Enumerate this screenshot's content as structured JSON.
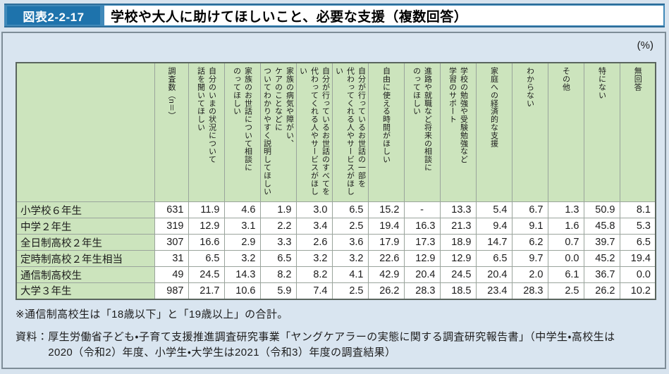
{
  "figure": {
    "label": "図表2-2-17",
    "title": "学校や大人に助けてほしいこと、必要な支援（複数回答）"
  },
  "unit_label": "(%)",
  "table": {
    "columns": [
      "調査数（n＝）",
      "自分のいまの状況について\n話を聞いてほしい",
      "家族のお世話について相談に\nのってほしい",
      "家族の病気や障がい、\nケアのことなどに\nついてわかりやすく説明してほしい",
      "自分が行っているお世話のすべてを\n代わってくれる人やサービスがほしい",
      "自分が行っているお世話の一部を\n代わってくれる人やサービスがほしい",
      "自由に使える時間がほしい",
      "進路や就職など将来の相談に\nのってほしい",
      "学校の勉強や受験勉強など\n学習のサポート",
      "家庭への経済的な支援",
      "わからない",
      "その他",
      "特にない",
      "無回答"
    ],
    "rows": [
      {
        "label": "小学校６年生",
        "values": [
          "631",
          "11.9",
          "4.6",
          "1.9",
          "3.0",
          "6.5",
          "15.2",
          "-",
          "13.3",
          "5.4",
          "6.7",
          "1.3",
          "50.9",
          "8.1"
        ]
      },
      {
        "label": "中学２年生",
        "values": [
          "319",
          "12.9",
          "3.1",
          "2.2",
          "3.4",
          "2.5",
          "19.4",
          "16.3",
          "21.3",
          "9.4",
          "9.1",
          "1.6",
          "45.8",
          "5.3"
        ]
      },
      {
        "label": "全日制高校２年生",
        "values": [
          "307",
          "16.6",
          "2.9",
          "3.3",
          "2.6",
          "3.6",
          "17.9",
          "17.3",
          "18.9",
          "14.7",
          "6.2",
          "0.7",
          "39.7",
          "6.5"
        ]
      },
      {
        "label": "定時制高校２年生相当",
        "values": [
          "31",
          "6.5",
          "3.2",
          "6.5",
          "3.2",
          "3.2",
          "22.6",
          "12.9",
          "12.9",
          "6.5",
          "9.7",
          "0.0",
          "45.2",
          "19.4"
        ]
      },
      {
        "label": "通信制高校生",
        "values": [
          "49",
          "24.5",
          "14.3",
          "8.2",
          "8.2",
          "4.1",
          "42.9",
          "20.4",
          "24.5",
          "20.4",
          "2.0",
          "6.1",
          "36.7",
          "0.0"
        ]
      },
      {
        "label": "大学３年生",
        "values": [
          "987",
          "21.7",
          "10.6",
          "5.9",
          "7.4",
          "2.5",
          "26.2",
          "28.3",
          "18.5",
          "23.4",
          "28.3",
          "2.5",
          "26.2",
          "10.2"
        ]
      }
    ]
  },
  "notes": {
    "footnote": "※通信制高校生は「18歳以下」と「19歳以上」の合計。",
    "source_prefix": "資料：",
    "source_body": "厚生労働省子ども・子育て支援推進調査研究事業「ヤングケアラーの実態に関する調査研究報告書」（中学生・高校生は2020（令和2）年度、小学生・大学生は2021（令和3）年度の調査結果）"
  },
  "colors": {
    "page_background": "#d7e3ee",
    "title_bar_blue": "#4089b9",
    "title_bar_edge_blue": "#2d6d99",
    "figure_badge_blue": "#1e73ac",
    "header_green": "#cce4bd",
    "panel_background": "#d9e5f0",
    "panel_border": "#7e8d98",
    "table_border": "#5a655e"
  }
}
